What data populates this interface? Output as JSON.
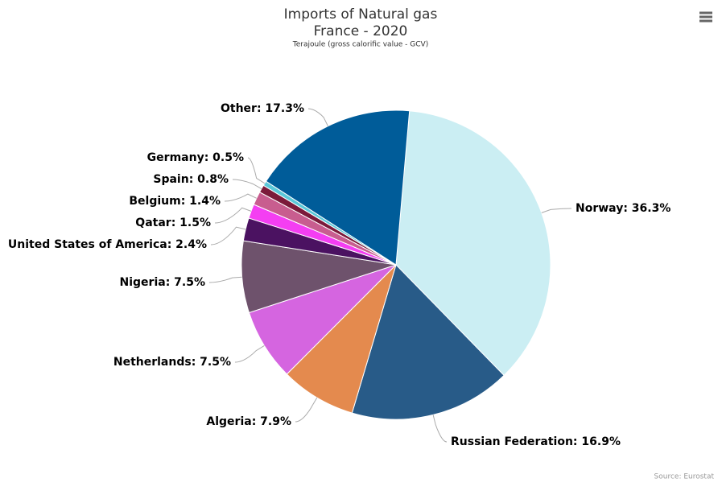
{
  "chart_data": {
    "type": "pie",
    "title": [
      "Imports of Natural gas",
      "France - 2020"
    ],
    "subtitle": "Terajoule (gross calorific value - GCV)",
    "credits": "Source: Eurostat",
    "categories": [
      "Norway",
      "Russian Federation",
      "Algeria",
      "Netherlands",
      "Nigeria",
      "United States of America",
      "Qatar",
      "Belgium",
      "Spain",
      "Germany",
      "Other"
    ],
    "values": [
      36.3,
      16.9,
      7.9,
      7.5,
      7.5,
      2.4,
      1.5,
      1.4,
      0.8,
      0.5,
      17.3
    ],
    "value_labels": [
      "Norway: 36.3%",
      "Russian Federation: 16.9%",
      "Algeria: 7.9%",
      "Netherlands: 7.5%",
      "Nigeria: 7.5%",
      "United States of America: 2.4%",
      "Qatar: 1.5%",
      "Belgium: 1.4%",
      "Spain: 0.8%",
      "Germany: 0.5%",
      "Other: 17.3%"
    ],
    "colors": [
      "#cbeef3",
      "#285b88",
      "#e48a4e",
      "#d565e0",
      "#6e526c",
      "#4b1261",
      "#f43ef2",
      "#c85d8f",
      "#7b1a3a",
      "#5bc8d9",
      "#005c99"
    ]
  }
}
